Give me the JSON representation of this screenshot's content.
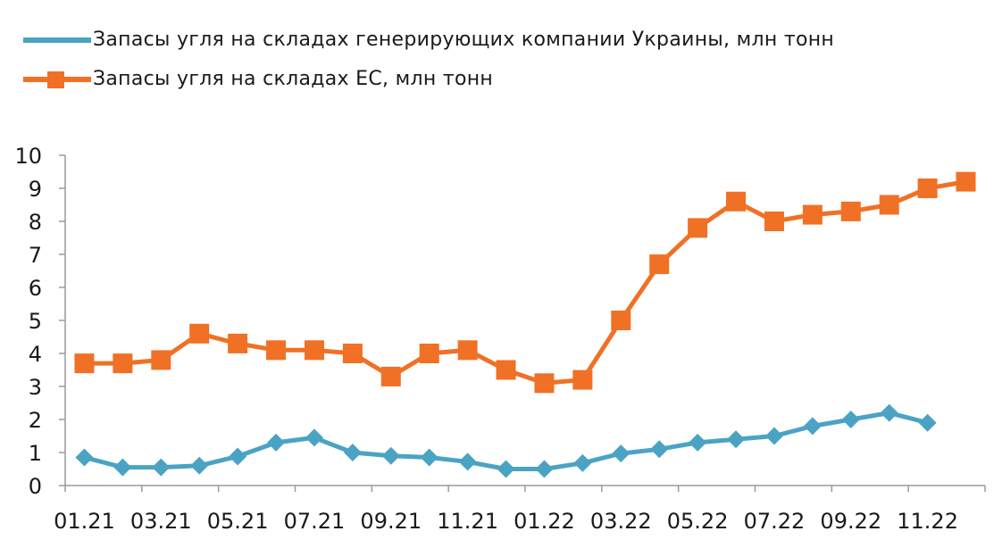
{
  "chart_data": {
    "type": "line",
    "title": "",
    "xlabel": "",
    "ylabel": "",
    "ylim": [
      0,
      10
    ],
    "yticks": [
      "0",
      "1",
      "2",
      "3",
      "4",
      "5",
      "6",
      "7",
      "8",
      "9",
      "10"
    ],
    "xtick_labels": [
      "01.21",
      "03.21",
      "05.21",
      "07.21",
      "09.21",
      "11.21",
      "01.22",
      "03.22",
      "05.22",
      "07.22",
      "09.22",
      "11.22"
    ],
    "categories": [
      "01.21",
      "02.21",
      "03.21",
      "04.21",
      "05.21",
      "06.21",
      "07.21",
      "08.21",
      "09.21",
      "10.21",
      "11.21",
      "12.21",
      "01.22",
      "02.22",
      "03.22",
      "04.22",
      "05.22",
      "06.22",
      "07.22",
      "08.22",
      "09.22",
      "10.22",
      "11.22",
      "12.22"
    ],
    "grid": false,
    "legend_position": "top-left",
    "series": [
      {
        "name": "Запасы угля на складах генерирующих компании Украины, млн тонн",
        "color": "#4ba3c3",
        "marker": "diamond",
        "values": [
          0.85,
          0.55,
          0.55,
          0.6,
          0.88,
          1.3,
          1.45,
          1.0,
          0.9,
          0.85,
          0.72,
          0.5,
          0.5,
          0.68,
          0.97,
          1.1,
          1.3,
          1.4,
          1.5,
          1.8,
          2.0,
          2.2,
          1.9,
          null
        ]
      },
      {
        "name": "Запасы угля на складах ЕС, млн тонн",
        "color": "#f07125",
        "marker": "square",
        "values": [
          3.7,
          3.7,
          3.8,
          4.6,
          4.3,
          4.1,
          4.1,
          4.0,
          3.3,
          4.0,
          4.1,
          3.5,
          3.1,
          3.2,
          5.0,
          6.7,
          7.8,
          8.6,
          8.0,
          8.2,
          8.3,
          8.5,
          9.0,
          9.2
        ]
      }
    ]
  }
}
